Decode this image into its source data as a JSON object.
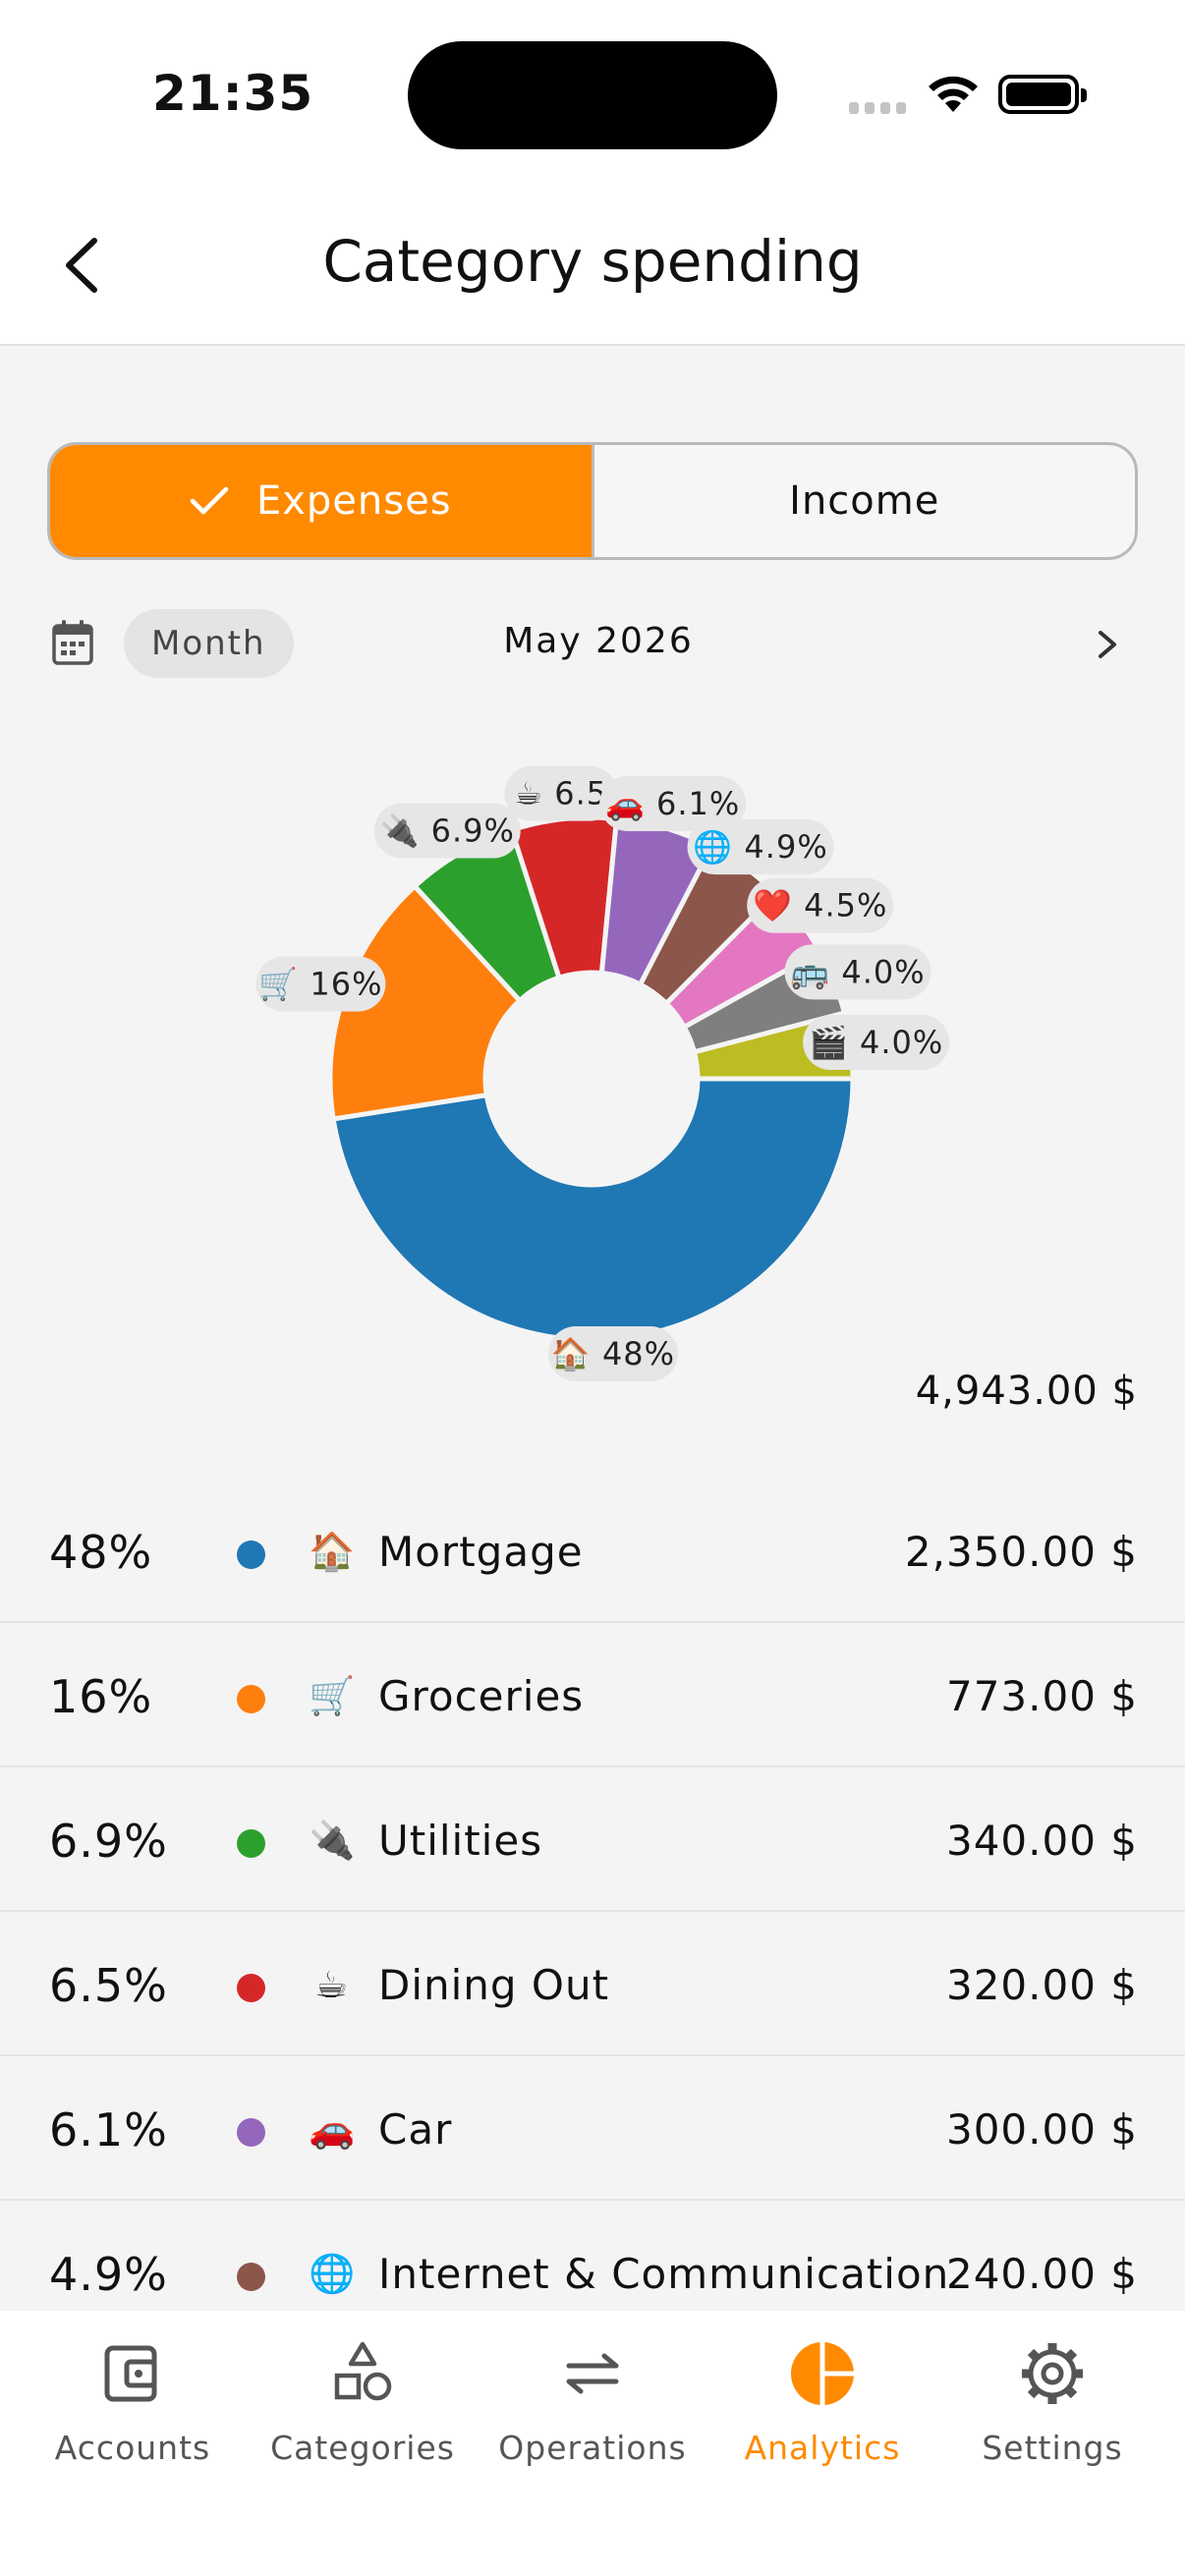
{
  "status": {
    "time": "21:35"
  },
  "header": {
    "title": "Category spending",
    "back_icon": "chevron-left-icon"
  },
  "segment": {
    "expenses_label": "Expenses",
    "income_label": "Income",
    "active": "expenses"
  },
  "period": {
    "chip_label": "Month",
    "month_label": "May 2026",
    "calendar_icon": "calendar-icon",
    "next_icon": "chevron-right-icon"
  },
  "accent_color": "#ff8a00",
  "chart_data": {
    "type": "pie",
    "donut": true,
    "total_label": "4,943.00 $",
    "slices": [
      {
        "label": "🏠 48%",
        "value": 2350,
        "color": "#1f77b4"
      },
      {
        "label": "🛒 16%",
        "value": 773,
        "color": "#ff7f0e"
      },
      {
        "label": "🔌 6.9%",
        "value": 340,
        "color": "#2ca02c"
      },
      {
        "label": "☕ 6.5",
        "value": 320,
        "color": "#d62728"
      },
      {
        "label": "🚗 6.1%",
        "value": 300,
        "color": "#9467bd"
      },
      {
        "label": "🌐 4.9%",
        "value": 240,
        "color": "#8c564b"
      },
      {
        "label": "❤️ 4.5%",
        "value": 220,
        "color": "#e377c2"
      },
      {
        "label": "🚌 4.0%",
        "value": 200,
        "color": "#7f7f7f"
      },
      {
        "label": "🎬 4.0%",
        "value": 200,
        "color": "#bcbd22"
      }
    ]
  },
  "list": [
    {
      "pct": "48%",
      "emoji": "🏠",
      "name": "Mortgage",
      "amount": "2,350.00 $",
      "color": "#1f77b4"
    },
    {
      "pct": "16%",
      "emoji": "🛒",
      "name": "Groceries",
      "amount": "773.00 $",
      "color": "#ff7f0e"
    },
    {
      "pct": "6.9%",
      "emoji": "🔌",
      "name": "Utilities",
      "amount": "340.00 $",
      "color": "#2ca02c"
    },
    {
      "pct": "6.5%",
      "emoji": "☕",
      "name": "Dining Out",
      "amount": "320.00 $",
      "color": "#d62728"
    },
    {
      "pct": "6.1%",
      "emoji": "🚗",
      "name": "Car",
      "amount": "300.00 $",
      "color": "#9467bd"
    },
    {
      "pct": "4.9%",
      "emoji": "🌐",
      "name": "Internet & Communication",
      "amount": "240.00 $",
      "color": "#8c564b"
    }
  ],
  "tabs": [
    {
      "label": "Accounts",
      "icon": "wallet-icon"
    },
    {
      "label": "Categories",
      "icon": "shapes-icon"
    },
    {
      "label": "Operations",
      "icon": "transfer-arrows-icon"
    },
    {
      "label": "Analytics",
      "icon": "pie-chart-icon",
      "active": true
    },
    {
      "label": "Settings",
      "icon": "gear-icon"
    }
  ]
}
